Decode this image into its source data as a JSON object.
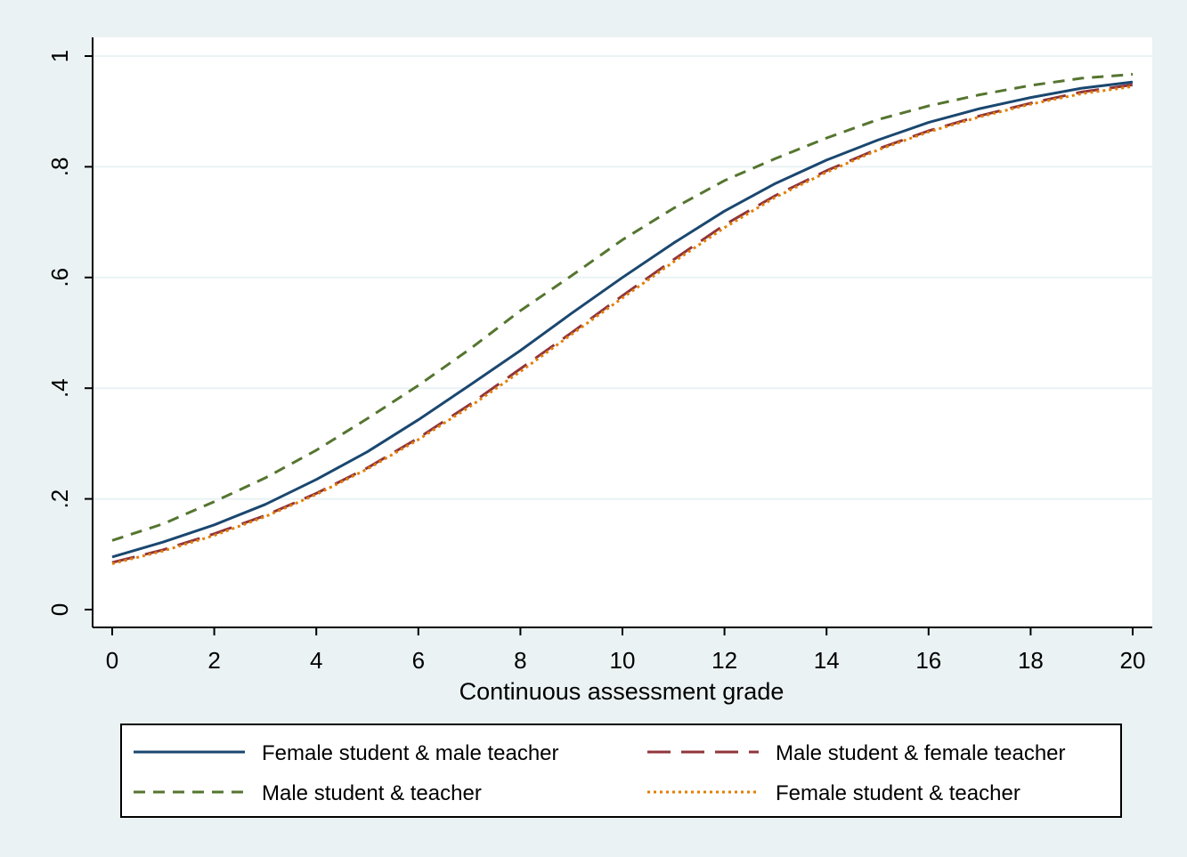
{
  "chart_data": {
    "type": "line",
    "title": "",
    "xlabel": "Continuous assessment grade",
    "ylabel": "",
    "xlim": [
      0,
      20
    ],
    "ylim": [
      0,
      1
    ],
    "grid": true,
    "legend_position": "bottom",
    "x_ticks": [
      {
        "value": 0,
        "label": "0"
      },
      {
        "value": 2,
        "label": "2"
      },
      {
        "value": 4,
        "label": "4"
      },
      {
        "value": 6,
        "label": "6"
      },
      {
        "value": 8,
        "label": "8"
      },
      {
        "value": 10,
        "label": "10"
      },
      {
        "value": 12,
        "label": "12"
      },
      {
        "value": 14,
        "label": "14"
      },
      {
        "value": 16,
        "label": "16"
      },
      {
        "value": 18,
        "label": "18"
      },
      {
        "value": 20,
        "label": "20"
      }
    ],
    "y_ticks": [
      {
        "value": 0,
        "label": "0"
      },
      {
        "value": 0.2,
        "label": ".2"
      },
      {
        "value": 0.4,
        "label": ".4"
      },
      {
        "value": 0.6,
        "label": ".6"
      },
      {
        "value": 0.8,
        "label": ".8"
      },
      {
        "value": 1,
        "label": "1"
      }
    ],
    "x": [
      0,
      1,
      2,
      3,
      4,
      5,
      6,
      7,
      8,
      9,
      10,
      11,
      12,
      13,
      14,
      15,
      16,
      17,
      18,
      19,
      20
    ],
    "series": [
      {
        "name": "Female student & male teacher",
        "color": "#1a476f",
        "dash": "solid",
        "values": [
          0.095,
          0.122,
          0.153,
          0.19,
          0.235,
          0.285,
          0.343,
          0.405,
          0.468,
          0.535,
          0.6,
          0.662,
          0.72,
          0.77,
          0.812,
          0.848,
          0.88,
          0.905,
          0.925,
          0.942,
          0.953
        ]
      },
      {
        "name": "Male student & female teacher",
        "color": "#90353b",
        "dash": "longdash",
        "values": [
          0.085,
          0.108,
          0.137,
          0.17,
          0.21,
          0.256,
          0.31,
          0.37,
          0.435,
          0.5,
          0.567,
          0.632,
          0.695,
          0.748,
          0.793,
          0.832,
          0.865,
          0.892,
          0.915,
          0.935,
          0.948
        ]
      },
      {
        "name": "Male student & teacher",
        "color": "#55752f",
        "dash": "dash",
        "values": [
          0.125,
          0.155,
          0.195,
          0.238,
          0.288,
          0.345,
          0.405,
          0.47,
          0.54,
          0.603,
          0.668,
          0.725,
          0.775,
          0.815,
          0.852,
          0.885,
          0.91,
          0.93,
          0.947,
          0.96,
          0.967
        ]
      },
      {
        "name": "Female student & teacher",
        "color": "#e37e00",
        "dash": "dot",
        "values": [
          0.083,
          0.106,
          0.134,
          0.168,
          0.208,
          0.254,
          0.307,
          0.366,
          0.43,
          0.497,
          0.563,
          0.628,
          0.69,
          0.745,
          0.79,
          0.83,
          0.863,
          0.89,
          0.913,
          0.932,
          0.945
        ]
      }
    ]
  }
}
